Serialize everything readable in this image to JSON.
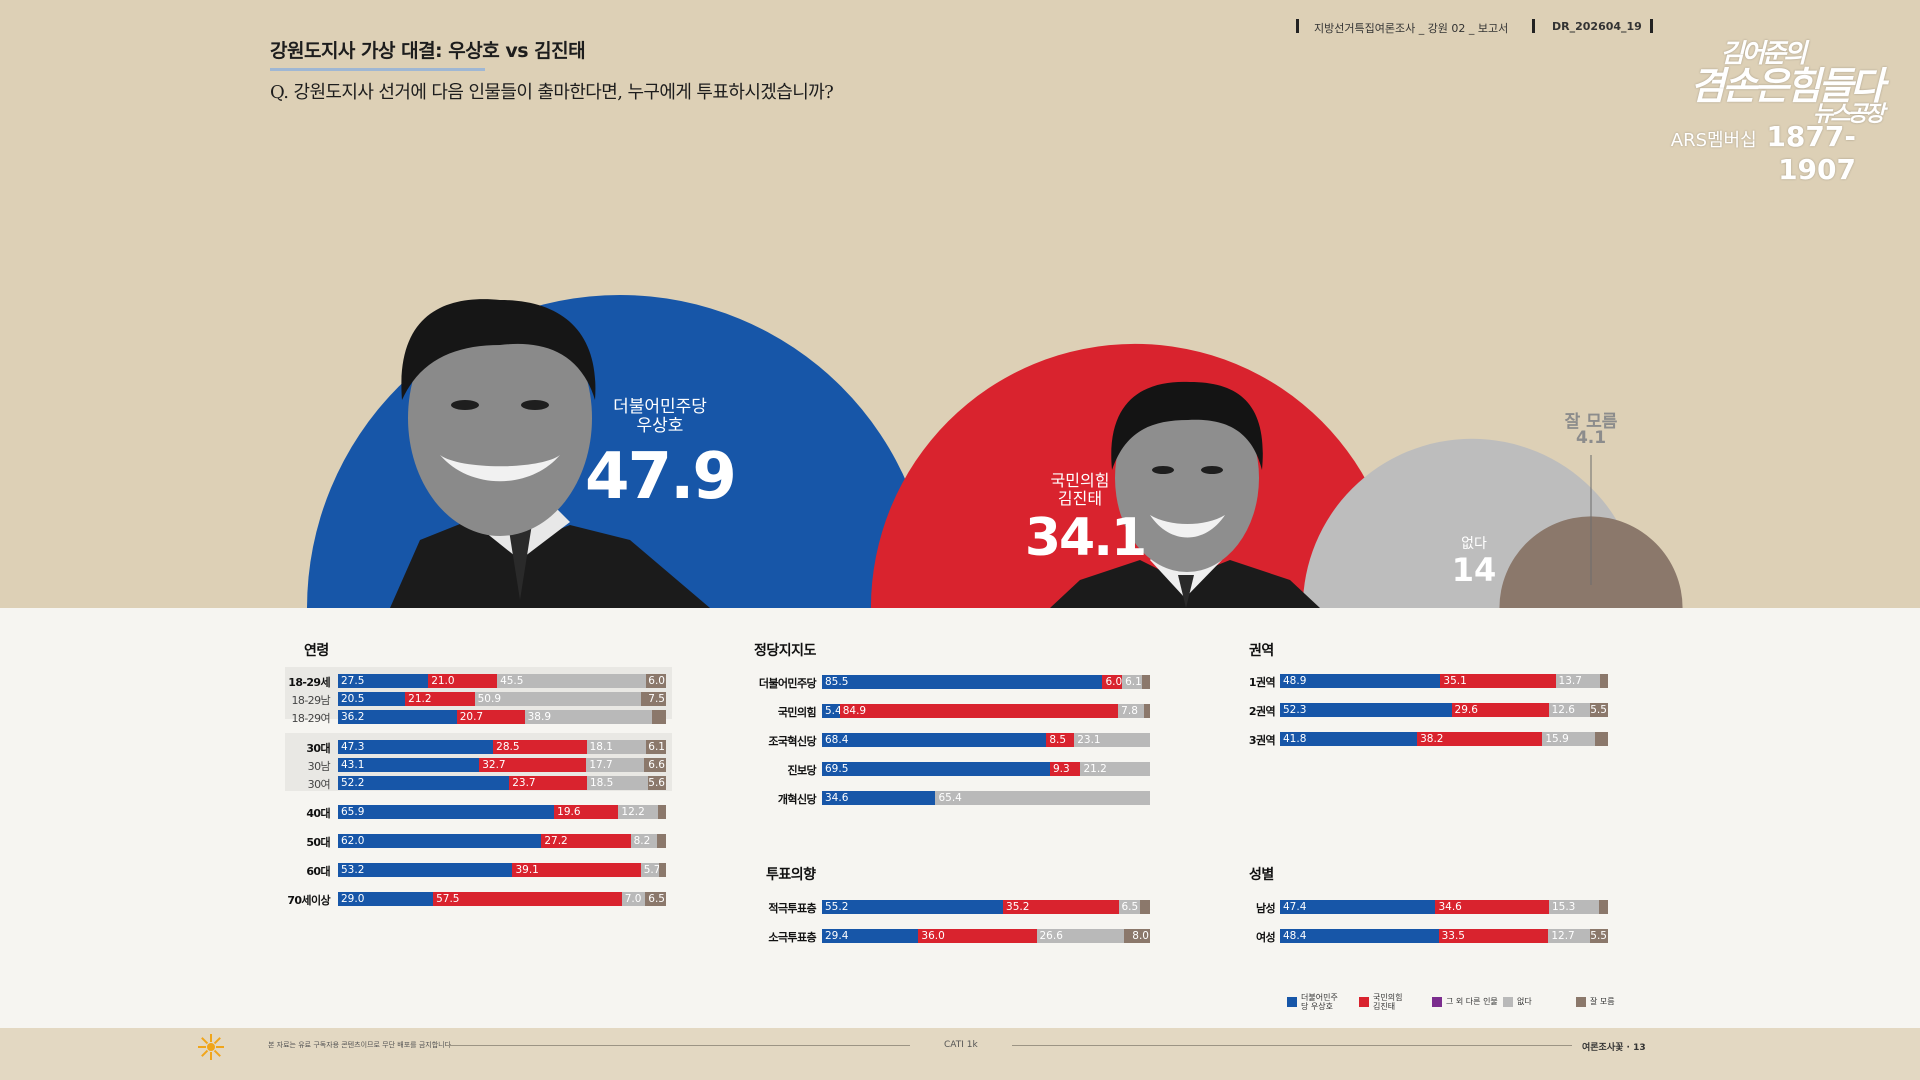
{
  "header": {
    "title": "강원도지사 가상 대결: 우상호  vs 김진태",
    "question": "Q. 강원도지사 선거에 다음 인물들이 출마한다면, 누구에게 투표하시겠습니까?",
    "meta_left": "지방선거특집여론조사 _ 강원 02 _ 보고서",
    "meta_right": "DR_202604_19"
  },
  "brand": {
    "line1": "김어준의",
    "line2": "겸손은힘들다",
    "line3": "뉴스공장",
    "ars": "ARS멤버십",
    "number": "1877-1907"
  },
  "colors": {
    "blue": "#1756a8",
    "red": "#d9232e",
    "gray": "#b9b9b9",
    "purple": "#7b2d8e",
    "brown": "#8b786b",
    "beige": "#ddd0b6"
  },
  "chart_data": [
    {
      "type": "area",
      "name": "overall",
      "items": [
        {
          "party": "더불어민주당",
          "name": "우상호",
          "value": 47.9,
          "color": "#1756a8"
        },
        {
          "party": "국민의힘",
          "name": "김진태",
          "value": 34.1,
          "color": "#d9232e"
        },
        {
          "party": "",
          "name": "없다",
          "value": 14.0,
          "color": "#bdbdbd"
        },
        {
          "party": "",
          "name": "잘 모름",
          "value": 4.1,
          "color": "#8b786b"
        }
      ]
    },
    {
      "type": "bar",
      "title": "연령",
      "stack_order": [
        "우상호",
        "김진태",
        "없다",
        "잘 모름"
      ],
      "rows": [
        {
          "label": "18-29세",
          "values": [
            27.5,
            21.0,
            45.5,
            6.0
          ]
        },
        {
          "label": "18-29남",
          "sub": true,
          "values": [
            20.5,
            21.2,
            50.9,
            7.5
          ]
        },
        {
          "label": "18-29여",
          "sub": true,
          "values": [
            36.2,
            20.7,
            38.9,
            4.2
          ],
          "labels": [
            "36.2",
            "20.7",
            "38.9",
            ""
          ]
        },
        {
          "label": "30대",
          "values": [
            47.3,
            28.5,
            18.1,
            6.1
          ]
        },
        {
          "label": "30남",
          "sub": true,
          "values": [
            43.1,
            32.7,
            17.7,
            6.6
          ]
        },
        {
          "label": "30여",
          "sub": true,
          "values": [
            52.2,
            23.7,
            18.5,
            5.6
          ]
        },
        {
          "label": "40대",
          "values": [
            65.9,
            19.6,
            12.2,
            2.3
          ],
          "labels": [
            "65.9",
            "19.6",
            "12.2",
            ""
          ]
        },
        {
          "label": "50대",
          "values": [
            62.0,
            27.2,
            8.2,
            2.6
          ],
          "labels": [
            "62.0",
            "27.2",
            "8.2",
            ""
          ]
        },
        {
          "label": "60대",
          "values": [
            53.2,
            39.1,
            5.7,
            2.0
          ],
          "labels": [
            "53.2",
            "39.1",
            "5.7",
            ""
          ]
        },
        {
          "label": "70세이상",
          "values": [
            29.0,
            57.5,
            7.0,
            6.5
          ]
        }
      ]
    },
    {
      "type": "bar",
      "title": "정당지지도",
      "rows": [
        {
          "label": "더불어민주당",
          "values": [
            85.5,
            6.0,
            6.1,
            2.4
          ],
          "labels": [
            "85.5",
            "6.0",
            "6.1",
            ""
          ]
        },
        {
          "label": "국민의힘",
          "values": [
            5.4,
            84.9,
            7.8,
            1.9
          ],
          "labels": [
            "5.4",
            "84.9",
            "7.8",
            ""
          ]
        },
        {
          "label": "조국혁신당",
          "values": [
            68.4,
            8.5,
            23.1,
            0
          ],
          "labels": [
            "68.4",
            "8.5",
            "23.1",
            ""
          ]
        },
        {
          "label": "진보당",
          "values": [
            69.5,
            9.3,
            21.2,
            0
          ],
          "labels": [
            "69.5",
            "9.3",
            "21.2",
            ""
          ]
        },
        {
          "label": "개혁신당",
          "values": [
            34.6,
            0,
            65.4,
            0
          ],
          "labels": [
            "34.6",
            "",
            "65.4",
            ""
          ]
        }
      ]
    },
    {
      "type": "bar",
      "title": "투표의향",
      "rows": [
        {
          "label": "적극투표층",
          "values": [
            55.2,
            35.2,
            6.5,
            3.1
          ],
          "labels": [
            "55.2",
            "35.2",
            "6.5",
            ""
          ]
        },
        {
          "label": "소극투표층",
          "values": [
            29.4,
            36.0,
            26.6,
            8.0
          ]
        }
      ]
    },
    {
      "type": "bar",
      "title": "권역",
      "rows": [
        {
          "label": "1권역",
          "values": [
            48.9,
            35.1,
            13.7,
            2.3
          ],
          "labels": [
            "48.9",
            "35.1",
            "13.7",
            ""
          ]
        },
        {
          "label": "2권역",
          "values": [
            52.3,
            29.6,
            12.6,
            5.5
          ]
        },
        {
          "label": "3권역",
          "values": [
            41.8,
            38.2,
            15.9,
            4.1
          ],
          "labels": [
            "41.8",
            "38.2",
            "15.9",
            ""
          ]
        }
      ]
    },
    {
      "type": "bar",
      "title": "성별",
      "rows": [
        {
          "label": "남성",
          "values": [
            47.4,
            34.6,
            15.3,
            2.7
          ],
          "labels": [
            "47.4",
            "34.6",
            "15.3",
            ""
          ]
        },
        {
          "label": "여성",
          "values": [
            48.4,
            33.5,
            12.7,
            5.5
          ]
        }
      ]
    }
  ],
  "legend": [
    {
      "label": "더불어민주당 우상호",
      "color": "#1756a8"
    },
    {
      "label": "국민의힘 김진태",
      "color": "#d9232e"
    },
    {
      "label": "그 외 다른 인물",
      "color": "#7b2d8e"
    },
    {
      "label": "없다",
      "color": "#b9b9b9"
    },
    {
      "label": "잘 모름",
      "color": "#8b786b"
    }
  ],
  "footer": {
    "left": "본 자료는 유료 구독자용 콘텐츠이므로 무단 배포를 금지합니다",
    "center": "CATI 1k",
    "right": "여론조사꽃 · 13"
  }
}
